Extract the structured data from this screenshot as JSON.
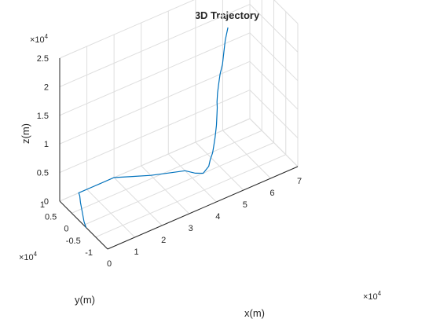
{
  "chart_data": {
    "type": "line",
    "title": "3D Trajectory",
    "xlabel": "x(m)",
    "ylabel": "y(m)",
    "zlabel": "z(m)",
    "x_exponent": "×10",
    "y_exponent": "×10",
    "z_exponent": "×10",
    "exponent_power": "4",
    "xlim": [
      0,
      7
    ],
    "ylim": [
      -1,
      1
    ],
    "zlim": [
      0,
      2.5
    ],
    "x_ticks": [
      "0",
      "1",
      "2",
      "3",
      "4",
      "5",
      "6",
      "7"
    ],
    "y_ticks": [
      "-1",
      "-0.5",
      "0",
      "0.5",
      "1"
    ],
    "z_ticks": [
      "0",
      "0.5",
      "1",
      "1.5",
      "2",
      "2.5"
    ],
    "x_tick_values": [
      0,
      1,
      2,
      3,
      4,
      5,
      6,
      7
    ],
    "y_tick_values": [
      -1,
      -0.5,
      0,
      0.5,
      1
    ],
    "z_tick_values": [
      0,
      0.5,
      1,
      1.5,
      2,
      2.5
    ],
    "grid": true,
    "line_color": "#0072BD",
    "series": [
      {
        "values": [
          [
            0,
            -0.1,
            0
          ],
          [
            0.1,
            0.1,
            0
          ],
          [
            0.3,
            0.4,
            0
          ],
          [
            0.5,
            0.7,
            0
          ],
          [
            0.65,
            0.9,
            0
          ],
          [
            0.7,
            1.0,
            0
          ],
          [
            1.3,
            1.0,
            0
          ],
          [
            2.0,
            1.0,
            0
          ],
          [
            2.5,
            0.8,
            0
          ],
          [
            3.0,
            0.6,
            0
          ],
          [
            3.5,
            0.45,
            0
          ],
          [
            4.0,
            0.3,
            0
          ],
          [
            4.2,
            0.1,
            0
          ],
          [
            4.4,
            0.0,
            0
          ],
          [
            4.5,
            0.02,
            0.02
          ],
          [
            4.65,
            0.05,
            0.05
          ],
          [
            4.7,
            0.05,
            0.15
          ],
          [
            4.8,
            0.06,
            0.25
          ],
          [
            4.85,
            0.07,
            0.35
          ],
          [
            4.9,
            0.07,
            0.5
          ],
          [
            4.95,
            0.07,
            0.7
          ],
          [
            4.97,
            0.07,
            0.9
          ],
          [
            4.98,
            0.07,
            1.0
          ],
          [
            4.97,
            0.07,
            1.1
          ],
          [
            5.0,
            0.08,
            1.25
          ],
          [
            5.05,
            0.08,
            1.42
          ],
          [
            5.1,
            0.09,
            1.55
          ],
          [
            5.2,
            0.1,
            1.7
          ],
          [
            5.25,
            0.1,
            1.9
          ],
          [
            5.3,
            0.1,
            2.1
          ],
          [
            5.4,
            0.1,
            2.3
          ]
        ]
      }
    ]
  }
}
